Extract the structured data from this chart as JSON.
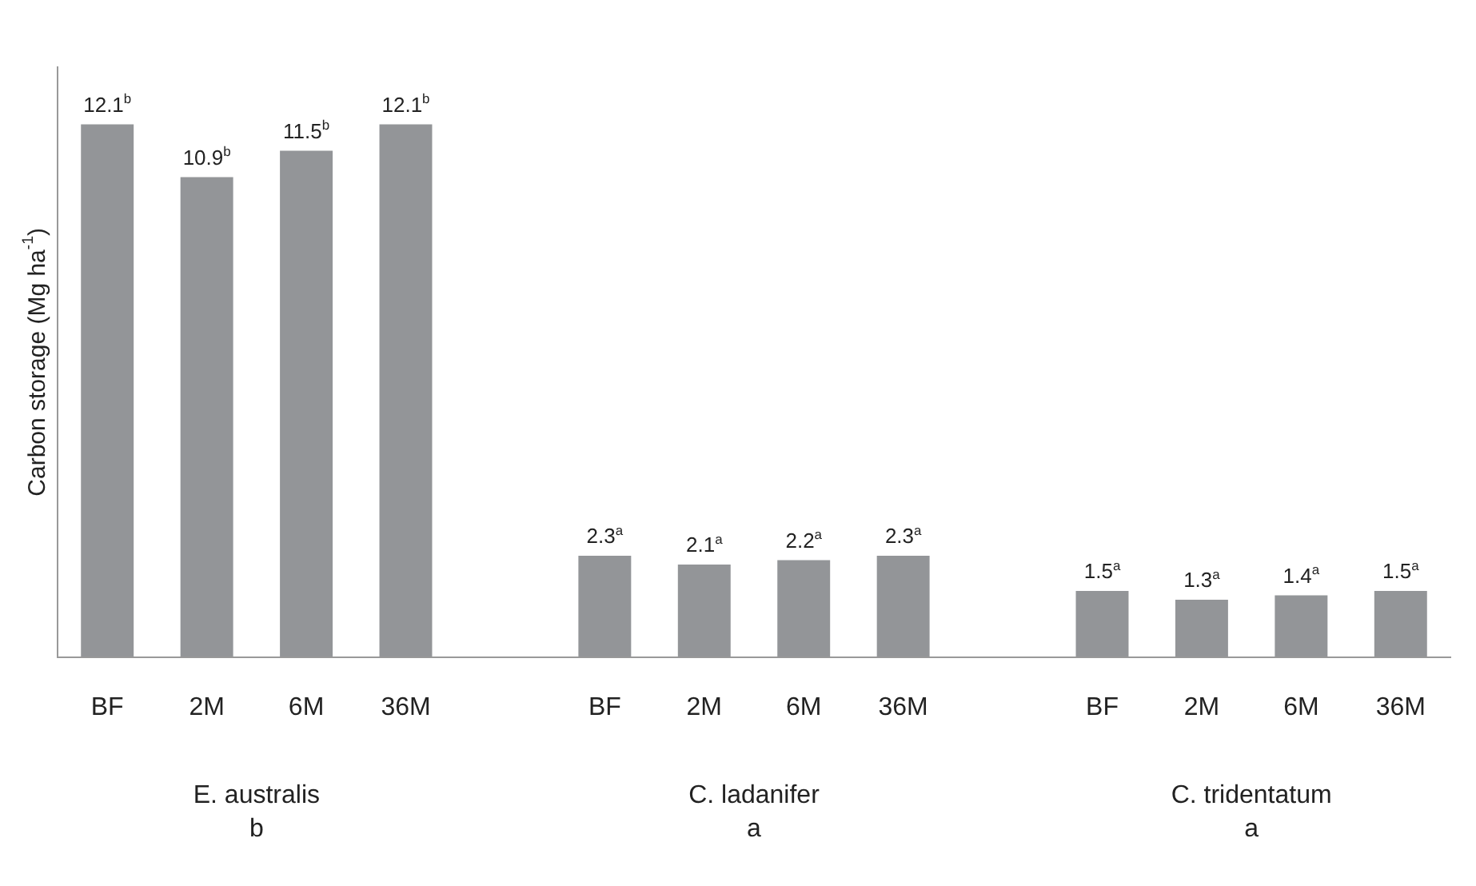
{
  "chart_data": {
    "type": "bar",
    "ylabel": "Carbon storage (Mg ha$^{-1}$)",
    "categories": [
      "BF",
      "2M",
      "6M",
      "36M",
      null,
      "BF",
      "2M",
      "6M",
      "36M",
      null,
      "BF",
      "2M",
      "6M",
      "36M"
    ],
    "values": [
      12.1,
      10.9,
      11.5,
      12.1,
      null,
      2.3,
      2.1,
      2.2,
      2.3,
      null,
      1.5,
      1.3,
      1.4,
      1.5
    ],
    "value_labels": [
      "12.1$^{b}$",
      "10.9$^{b}$",
      "11.5$^{b}$",
      "12.1$^{b}$",
      null,
      "2.3$^{a}$",
      "2.1$^{a}$",
      "2.2$^{a}$",
      "2.3$^{a}$",
      null,
      "1.5$^{a}$",
      "1.3$^{a}$",
      "1.4$^{a}$",
      "1.5$^{a}$"
    ],
    "color": "#939598",
    "ylim": [
      0,
      13.4
    ],
    "grid": false,
    "legend": false,
    "annotations": [
      "E. australis",
      "b",
      "C. ladanifer",
      "a",
      "C. tridentatum",
      "a"
    ]
  }
}
